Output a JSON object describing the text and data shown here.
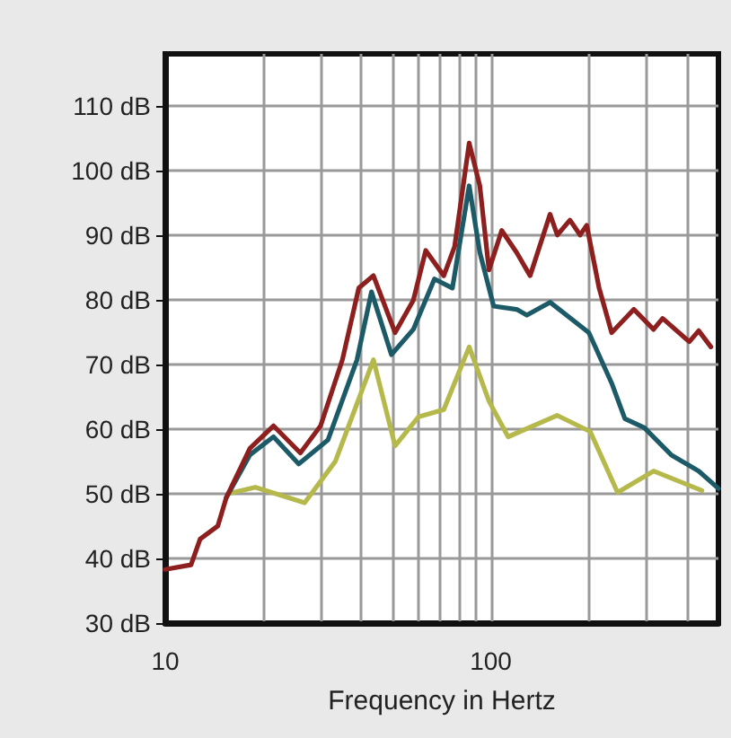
{
  "chart_data": {
    "type": "line",
    "xlabel": "Frequency in Hertz",
    "log": "x",
    "grid": true,
    "marker": "none",
    "line_style": "solid",
    "xlim": [
      10,
      500
    ],
    "xticks": [
      10,
      {
        "value": 20,
        "label": null
      },
      {
        "value": 30,
        "label": null
      },
      {
        "value": 40,
        "label": null
      },
      {
        "value": 50,
        "label": null
      },
      {
        "value": 60,
        "label": null
      },
      {
        "value": 70,
        "label": null
      },
      {
        "value": 80,
        "label": null
      },
      {
        "value": 90,
        "label": null
      },
      100,
      {
        "value": 200,
        "label": null
      },
      {
        "value": 300,
        "label": null
      },
      {
        "value": 400,
        "label": null
      }
    ],
    "ylim": [
      30,
      118
    ],
    "yticks": [
      {
        "value": 30,
        "label": "30 dB"
      },
      {
        "value": 40,
        "label": "40 dB"
      },
      {
        "value": 50,
        "label": "50 dB"
      },
      {
        "value": 60,
        "label": "60 dB"
      },
      {
        "value": 70,
        "label": "70 dB"
      },
      {
        "value": 80,
        "label": "80 dB"
      },
      {
        "value": 90,
        "label": "90 dB"
      },
      {
        "value": 100,
        "label": "100 dB"
      },
      {
        "value": 110,
        "label": "110 dB"
      }
    ],
    "series": [
      {
        "color": "#8e1f1f",
        "x": [
          10,
          12,
          12.8,
          14.5,
          15.4,
          18.2,
          21.5,
          26,
          30,
          35,
          39.3,
          43.6,
          50.8,
          57.8,
          63.1,
          71.7,
          77.4,
          85.8,
          92.5,
          98.7,
          108,
          120,
          132,
          152,
          160,
          175,
          188,
          197,
          215,
          235,
          275,
          316,
          337,
          407,
          435,
          474
        ],
        "values": [
          38.3,
          39,
          43,
          45,
          49.4,
          57,
          60.5,
          56.3,
          60.5,
          70.7,
          81.8,
          83.7,
          74.9,
          79.9,
          87.6,
          83.7,
          88.2,
          104.2,
          97.6,
          84.6,
          90.7,
          87.3,
          83.7,
          93.2,
          90,
          92.3,
          90,
          91.5,
          81.8,
          74.9,
          78.5,
          75.4,
          77.1,
          73.5,
          75.2,
          72.7
        ]
      },
      {
        "color": "#1b5a66",
        "x": [
          15.4,
          18.2,
          21.5,
          25.7,
          31.6,
          38.8,
          43,
          49.5,
          57.8,
          67.1,
          76.2,
          85.8,
          92.5,
          102,
          120,
          129,
          152,
          200,
          235,
          258,
          296,
          358,
          435,
          500
        ],
        "values": [
          49.4,
          56,
          58.8,
          54.6,
          58.3,
          70.7,
          81.2,
          71.5,
          75.4,
          83.2,
          81.8,
          97.6,
          87.3,
          79,
          78.5,
          77.6,
          79.6,
          74.9,
          67.1,
          61.6,
          60.2,
          56,
          53.5,
          50.8
        ]
      },
      {
        "color": "#b5b84a",
        "x": [
          15.6,
          18.9,
          26.8,
          33.3,
          43.6,
          50.8,
          60,
          71.7,
          85.8,
          98.7,
          113,
          160,
          202,
          245,
          316,
          445
        ],
        "values": [
          50,
          51,
          48.6,
          55,
          70.7,
          57.4,
          61.9,
          63,
          72.7,
          64.3,
          58.8,
          62.1,
          59.6,
          50.2,
          53.5,
          50.5
        ]
      }
    ]
  }
}
